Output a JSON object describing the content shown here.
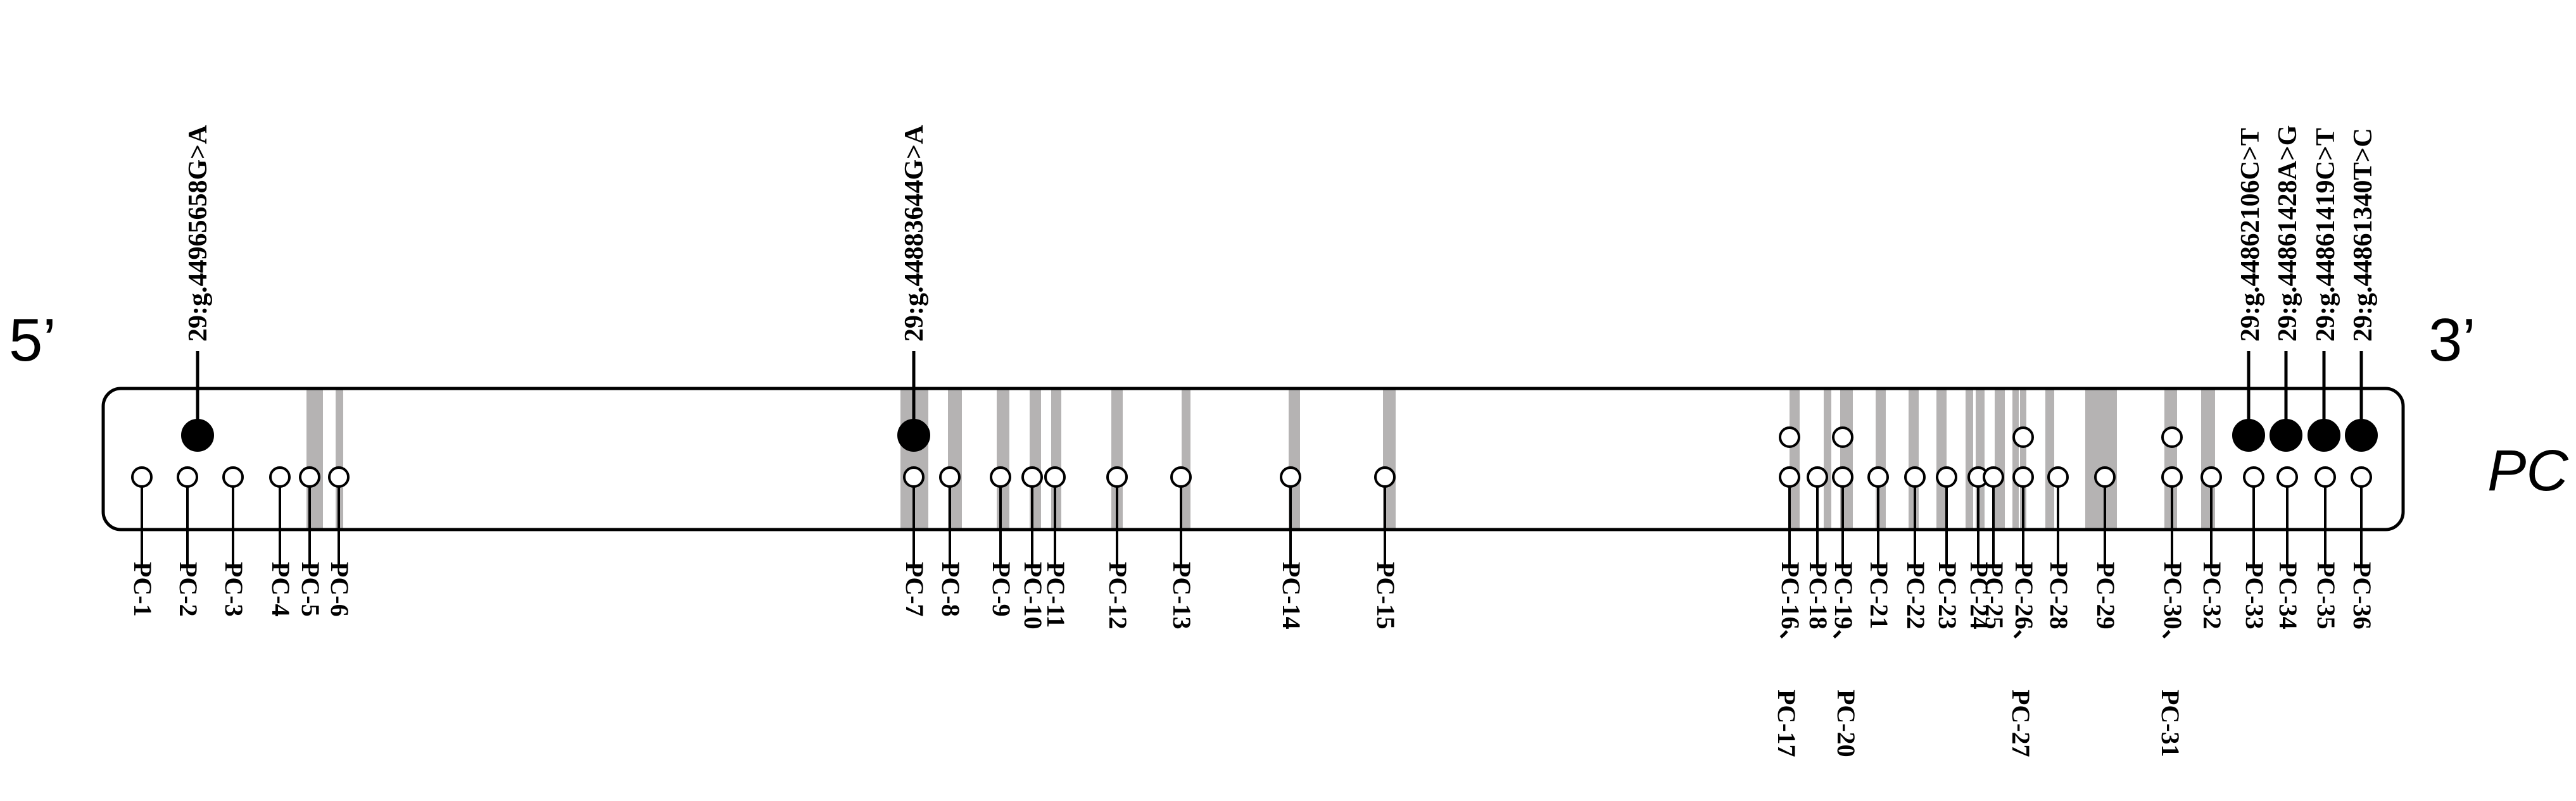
{
  "diagram": {
    "five_prime": "5’",
    "three_prime": "3’",
    "gene": "PC",
    "colors": {
      "region_band": "#b5b3b3",
      "snp_fill": "#000000",
      "outline": "#000000",
      "background": "#ffffff"
    },
    "snps": [
      "29:g.44965658G>A",
      "29:g.44883644G>A",
      "29:g.44862106C>T",
      "29:g.44861428A>G",
      "29:g.44861419C>T",
      "29:g.44861340T>C"
    ],
    "pc_labels": {
      "row1": [
        "PC-1",
        "PC-2",
        "PC-3",
        "PC-4",
        "PC-5",
        "PC-6",
        "PC-7",
        "PC-8",
        "PC-9",
        "PC-10",
        "PC-11",
        "PC-12",
        "PC-13",
        "PC-14",
        "PC-15",
        "PC-16、",
        "PC-18",
        "PC-19、",
        "PC-21",
        "PC-22",
        "PC-23",
        "PC-24",
        "PC-25",
        "PC-26、",
        "PC-28",
        "PC-29",
        "PC-30、",
        "PC-32",
        "PC-33",
        "PC-34",
        "PC-35",
        "PC-36"
      ],
      "row2": [
        "PC-17",
        "PC-20",
        "PC-27",
        "PC-31"
      ]
    }
  }
}
